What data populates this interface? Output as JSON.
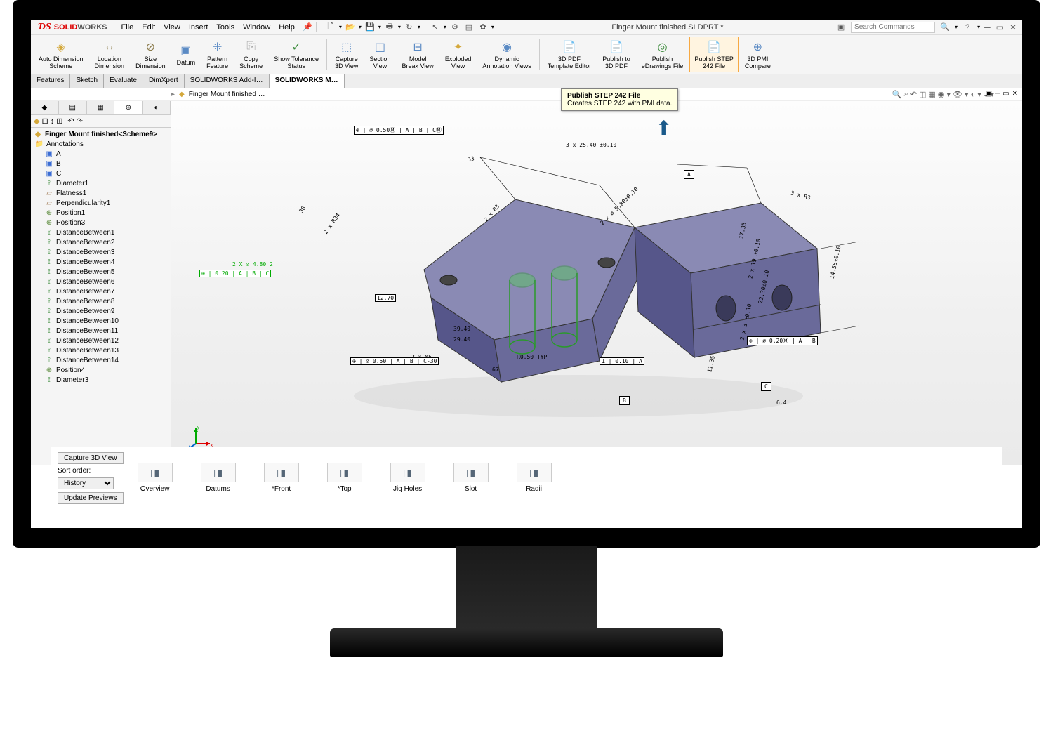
{
  "app": {
    "brand_prefix": "SOLID",
    "brand_suffix": "WORKS",
    "title": "Finger Mount finished.SLDPRT *",
    "search_placeholder": "Search Commands"
  },
  "menubar": [
    "File",
    "Edit",
    "View",
    "Insert",
    "Tools",
    "Window",
    "Help"
  ],
  "ribbon": [
    {
      "label": "Auto Dimension\nScheme",
      "icon": "◈",
      "color": "#d4a83b"
    },
    {
      "label": "Location\nDimension",
      "icon": "↔",
      "color": "#8a7a4a"
    },
    {
      "label": "Size\nDimension",
      "icon": "⊘",
      "color": "#8a7a4a"
    },
    {
      "label": "Datum",
      "icon": "▣",
      "color": "#5a8ac4"
    },
    {
      "label": "Pattern\nFeature",
      "icon": "⁜",
      "color": "#5a8ac4"
    },
    {
      "label": "Copy\nScheme",
      "icon": "⎘",
      "color": "#aaa"
    },
    {
      "label": "Show Tolerance\nStatus",
      "icon": "✓",
      "color": "#3a8a3a"
    },
    {
      "sep": true
    },
    {
      "label": "Capture\n3D View",
      "icon": "⬚",
      "color": "#5a8ac4"
    },
    {
      "label": "Section\nView",
      "icon": "◫",
      "color": "#5a8ac4"
    },
    {
      "label": "Model\nBreak View",
      "icon": "⊟",
      "color": "#5a8ac4"
    },
    {
      "label": "Exploded\nView",
      "icon": "✦",
      "color": "#d4a83b"
    },
    {
      "label": "Dynamic\nAnnotation Views",
      "icon": "◉",
      "color": "#5a8ac4"
    },
    {
      "sep": true
    },
    {
      "label": "3D PDF\nTemplate Editor",
      "icon": "📄",
      "color": "#c44"
    },
    {
      "label": "Publish to\n3D PDF",
      "icon": "📄",
      "color": "#c44"
    },
    {
      "label": "Publish\neDrawings File",
      "icon": "◎",
      "color": "#3a8a3a"
    },
    {
      "label": "Publish STEP\n242 File",
      "icon": "📄",
      "color": "#c44",
      "highlighted": true
    },
    {
      "label": "3D PMI\nCompare",
      "icon": "⊕",
      "color": "#5a8ac4"
    }
  ],
  "tabs": [
    "Features",
    "Sketch",
    "Evaluate",
    "DimXpert",
    "SOLIDWORKS Add-I…",
    "SOLIDWORKS M…"
  ],
  "active_tab": 5,
  "tooltip": {
    "title": "Publish STEP 242 File",
    "body": "Creates STEP 242 with PMI data."
  },
  "breadcrumb": "Finger Mount finished  …",
  "tree": {
    "root": "Finger Mount finished<Scheme9>",
    "items": [
      {
        "icon": "folder",
        "label": "Annotations",
        "indent": 0
      },
      {
        "icon": "datum",
        "label": "A",
        "indent": 1
      },
      {
        "icon": "datum",
        "label": "B",
        "indent": 1
      },
      {
        "icon": "datum",
        "label": "C",
        "indent": 1
      },
      {
        "icon": "dim",
        "label": "Diameter1",
        "indent": 1
      },
      {
        "icon": "tol",
        "label": "Flatness1",
        "indent": 1
      },
      {
        "icon": "tol",
        "label": "Perpendicularity1",
        "indent": 1
      },
      {
        "icon": "pos",
        "label": "Position1",
        "indent": 1
      },
      {
        "icon": "pos",
        "label": "Position3",
        "indent": 1
      },
      {
        "icon": "dim",
        "label": "DistanceBetween1",
        "indent": 1
      },
      {
        "icon": "dim",
        "label": "DistanceBetween2",
        "indent": 1
      },
      {
        "icon": "dim",
        "label": "DistanceBetween3",
        "indent": 1
      },
      {
        "icon": "dim",
        "label": "DistanceBetween4",
        "indent": 1
      },
      {
        "icon": "dim",
        "label": "DistanceBetween5",
        "indent": 1
      },
      {
        "icon": "dim",
        "label": "DistanceBetween6",
        "indent": 1
      },
      {
        "icon": "dim",
        "label": "DistanceBetween7",
        "indent": 1
      },
      {
        "icon": "dim",
        "label": "DistanceBetween8",
        "indent": 1
      },
      {
        "icon": "dim",
        "label": "DistanceBetween9",
        "indent": 1
      },
      {
        "icon": "dim",
        "label": "DistanceBetween10",
        "indent": 1
      },
      {
        "icon": "dim",
        "label": "DistanceBetween11",
        "indent": 1
      },
      {
        "icon": "dim",
        "label": "DistanceBetween12",
        "indent": 1
      },
      {
        "icon": "dim",
        "label": "DistanceBetween13",
        "indent": 1
      },
      {
        "icon": "dim",
        "label": "DistanceBetween14",
        "indent": 1
      },
      {
        "icon": "pos",
        "label": "Position4",
        "indent": 1
      },
      {
        "icon": "dim",
        "label": "Diameter3",
        "indent": 1
      }
    ]
  },
  "views": [
    {
      "label": "Overview"
    },
    {
      "label": "Datums"
    },
    {
      "label": "*Front"
    },
    {
      "label": "*Top"
    },
    {
      "label": "Jig Holes"
    },
    {
      "label": "Slot"
    },
    {
      "label": "Radii"
    }
  ],
  "bottom": {
    "capture": "Capture 3D View",
    "sort_label": "Sort order:",
    "sort_value": "History",
    "update": "Update Previews"
  },
  "annotations": {
    "top_fcf": "⊕ | ⌀ 0.50Ⓜ | A | B | CⓂ",
    "dim_3x2540": "3 x 25.40 ±0.10",
    "dim_33": "33",
    "dim_38": "38",
    "dim_2x34": "2 x R34",
    "dim_2xR3": "2 x R3",
    "dim_3xR3": "3 x R3",
    "dim_5_80": "2 x ⌀ 5.80±0.10",
    "dim_1270": "12.70",
    "dim_39_40": "39.40",
    "dim_29_40": "29.40",
    "dim_67": "67",
    "dim_R050": "R0.50 TYP",
    "dim_2xM5": "2 x M5",
    "fcf_left": "⊕ | 0.20 | A | B | C",
    "fcf_bot": "⊕ | ⌀ 0.50 | A | B | C-30",
    "fcf_perp": "⊥ | 0.10 | A",
    "fcf_right": "⊕ | ⌀ 0.20Ⓜ | A | B",
    "dim_17_5": "17.35",
    "dim_2x19": "2 x 19 ±0.10",
    "dim_22_30": "22.30±0.10",
    "dim_2x3": "2 x 3 ±0.10",
    "dim_14_5": "14.55±0.10",
    "dim_6_4": "6.4",
    "dim_11_35": "11.35",
    "datum_A": "A",
    "datum_B": "B",
    "datum_C": "C",
    "sel_dim": "2 X ⌀ 4.80 2"
  },
  "colors": {
    "part_top": "#8a8ab4",
    "part_side": "#6a6a9a",
    "part_front": "#56568a",
    "hole_green": "#4cd44c",
    "bg": "#f5f5f5"
  }
}
